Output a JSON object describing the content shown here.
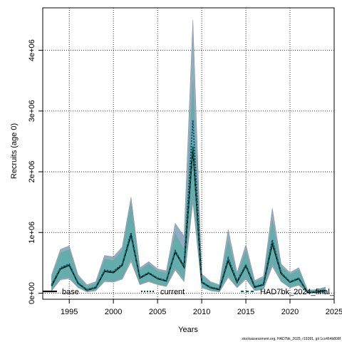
{
  "chart_data": {
    "type": "area",
    "xlabel": "Years",
    "ylabel": "Recruits (age 0)",
    "xlim": [
      1992,
      2025
    ],
    "ylim": [
      -100000,
      4700000
    ],
    "x_ticks": [
      1995,
      2000,
      2005,
      2010,
      2015,
      2020,
      2025
    ],
    "x_tick_labels": [
      "1995",
      "2000",
      "2005",
      "2010",
      "2015",
      "2020",
      "2025"
    ],
    "y_ticks": [
      0,
      1000000,
      2000000,
      3000000,
      4000000
    ],
    "y_tick_labels": [
      "0e+00",
      "1e+06",
      "2e+06",
      "3e+06",
      "4e+06"
    ],
    "grid": true,
    "legend_position": "bottom",
    "footnote": "stockassessment.org, HAD7bk_2025, r19281, git 1cc464b808f",
    "x": [
      1993,
      1994,
      1995,
      1996,
      1997,
      1998,
      1999,
      2000,
      2001,
      2002,
      2003,
      2004,
      2005,
      2006,
      2007,
      2008,
      2009,
      2010,
      2011,
      2012,
      2013,
      2014,
      2015,
      2016,
      2017,
      2018,
      2019,
      2020,
      2021,
      2022,
      2023,
      2024
    ],
    "series": [
      {
        "name": "base",
        "color": "#000000",
        "style": "solid",
        "values": [
          120000,
          400000,
          460000,
          160000,
          50000,
          90000,
          360000,
          340000,
          460000,
          960000,
          250000,
          330000,
          240000,
          200000,
          680000,
          430000,
          2400000,
          180000,
          90000,
          60000,
          540000,
          180000,
          450000,
          100000,
          140000,
          820000,
          320000,
          180000,
          240000,
          10000,
          20000,
          40000
        ]
      },
      {
        "name": "current",
        "color": "#1f3a6b",
        "style": "dotted",
        "values": [
          140000,
          420000,
          480000,
          170000,
          60000,
          100000,
          380000,
          360000,
          480000,
          1000000,
          260000,
          340000,
          250000,
          210000,
          700000,
          450000,
          2850000,
          190000,
          100000,
          70000,
          580000,
          200000,
          470000,
          110000,
          150000,
          880000,
          340000,
          190000,
          250000,
          10000,
          20000,
          50000
        ]
      },
      {
        "name": "HAD7bk_2024_final_",
        "color": "#006b5e",
        "style": "dashed",
        "values": [
          130000,
          410000,
          470000,
          165000,
          55000,
          95000,
          370000,
          350000,
          470000,
          980000,
          255000,
          335000,
          245000,
          205000,
          690000,
          440000,
          2420000,
          185000,
          95000,
          65000,
          560000,
          190000,
          460000,
          105000,
          145000,
          850000,
          330000,
          185000,
          245000,
          10000,
          20000,
          45000
        ]
      }
    ],
    "bands": [
      {
        "name": "current",
        "color": "#7f9fb5",
        "upper": [
          300000,
          720000,
          780000,
          300000,
          140000,
          190000,
          620000,
          600000,
          760000,
          1580000,
          420000,
          520000,
          400000,
          370000,
          1150000,
          940000,
          4500000,
          320000,
          190000,
          140000,
          1050000,
          340000,
          800000,
          210000,
          280000,
          1400000,
          480000,
          340000,
          420000,
          50000,
          60000,
          100000
        ],
        "lower": [
          40000,
          220000,
          240000,
          90000,
          20000,
          40000,
          190000,
          180000,
          230000,
          520000,
          140000,
          190000,
          140000,
          110000,
          380000,
          190000,
          1500000,
          90000,
          40000,
          20000,
          260000,
          90000,
          230000,
          40000,
          60000,
          440000,
          190000,
          90000,
          130000,
          0,
          0,
          10000
        ]
      },
      {
        "name": "HAD7bk_2024_final_",
        "color": "#5aaea8",
        "upper": [
          260000,
          660000,
          720000,
          270000,
          110000,
          160000,
          560000,
          540000,
          700000,
          1480000,
          380000,
          480000,
          360000,
          330000,
          980000,
          720000,
          3500000,
          290000,
          170000,
          120000,
          870000,
          300000,
          700000,
          180000,
          250000,
          1200000,
          440000,
          300000,
          380000,
          40000,
          50000,
          90000
        ],
        "lower": [
          50000,
          240000,
          260000,
          100000,
          25000,
          50000,
          210000,
          200000,
          250000,
          580000,
          150000,
          200000,
          150000,
          120000,
          420000,
          230000,
          1600000,
          100000,
          45000,
          25000,
          300000,
          100000,
          260000,
          45000,
          70000,
          500000,
          200000,
          100000,
          140000,
          0,
          0,
          15000
        ]
      }
    ]
  }
}
